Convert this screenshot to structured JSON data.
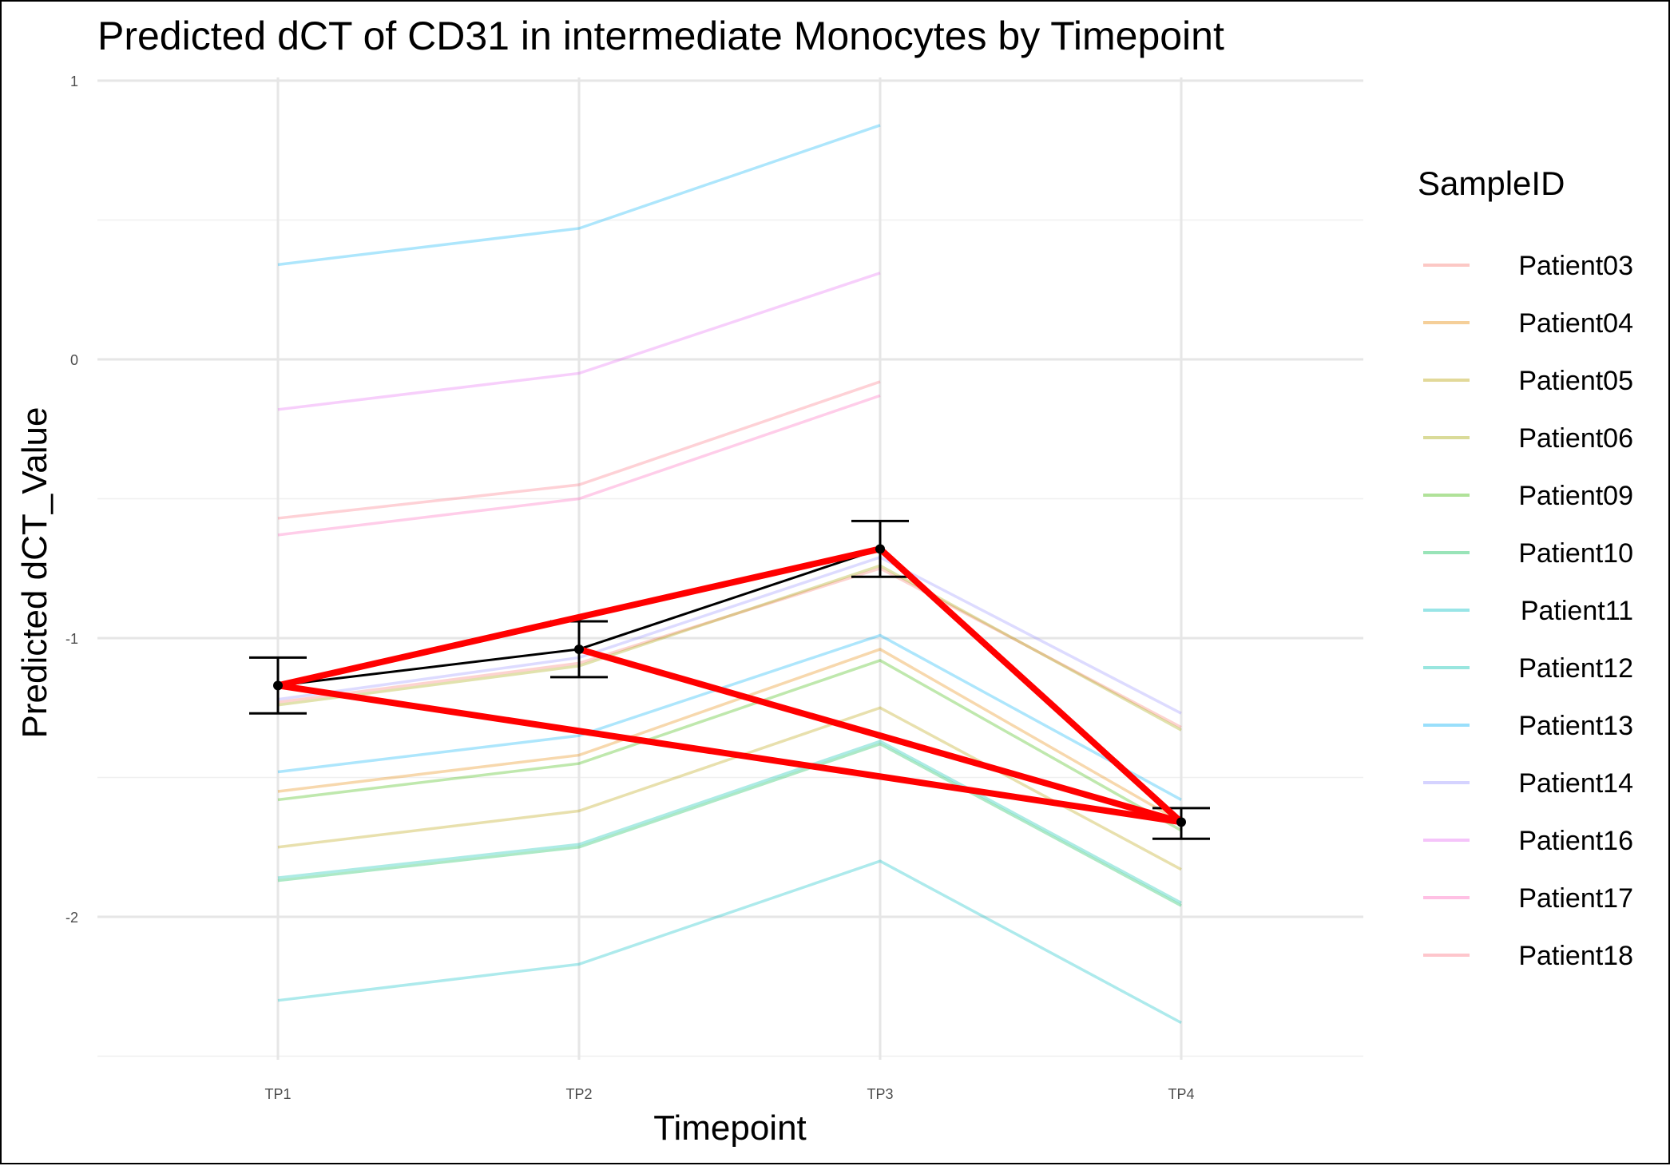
{
  "chart_data": {
    "type": "line",
    "title": "Predicted dCT of  CD31 in  intermediate  Monocytes by Timepoint",
    "xlabel": "Timepoint",
    "ylabel": "Predicted dCT_Value",
    "categories": [
      "TP1",
      "TP2",
      "TP3",
      "TP4"
    ],
    "ylim": [
      -2.5,
      1.0
    ],
    "yticks": [
      1,
      0,
      -1,
      -2
    ],
    "ytick_labels": [
      "1",
      "0",
      "-1",
      "-2"
    ],
    "grid": true,
    "legend": {
      "title": "SampleID",
      "position": "right"
    },
    "series": [
      {
        "name": "Patient03",
        "color": "#F8766D",
        "values": [
          -1.23,
          -1.09,
          -0.75,
          -1.32
        ]
      },
      {
        "name": "Patient04",
        "color": "#E58700",
        "values": [
          -1.55,
          -1.42,
          -1.04,
          -1.66
        ]
      },
      {
        "name": "Patient05",
        "color": "#B79F00",
        "values": [
          -1.75,
          -1.62,
          -1.25,
          -1.83
        ]
      },
      {
        "name": "Patient06",
        "color": "#A3A500",
        "values": [
          -1.24,
          -1.1,
          -0.74,
          -1.33
        ]
      },
      {
        "name": "Patient09",
        "color": "#39B600",
        "values": [
          -1.58,
          -1.45,
          -1.08,
          -1.69
        ]
      },
      {
        "name": "Patient10",
        "color": "#00BB4E",
        "values": [
          -1.87,
          -1.75,
          -1.38,
          -1.96
        ]
      },
      {
        "name": "Patient11",
        "color": "#00BFC4",
        "values": [
          -2.3,
          -2.17,
          -1.8,
          -2.38
        ]
      },
      {
        "name": "Patient12",
        "color": "#00C0AF",
        "values": [
          -1.86,
          -1.74,
          -1.37,
          -1.95
        ]
      },
      {
        "name": "Patient13",
        "color": "#00B0F6",
        "values": [
          0.34,
          0.47,
          0.84,
          null
        ]
      },
      {
        "name": "Patient14",
        "color": "#9590FF",
        "values": [
          -1.22,
          -1.07,
          -0.71,
          -1.27
        ]
      },
      {
        "name": "Patient16",
        "color": "#E76BF3",
        "values": [
          -0.18,
          -0.05,
          0.31,
          null
        ]
      },
      {
        "name": "Patient17",
        "color": "#FF62BC",
        "values": [
          -0.63,
          -0.5,
          -0.13,
          null
        ]
      },
      {
        "name": "Patient18",
        "color": "#FC717F",
        "values": [
          -0.57,
          -0.45,
          -0.08,
          null
        ]
      }
    ],
    "unlabeled_series": [
      {
        "color": "#00B0F6",
        "values": [
          -1.48,
          -1.35,
          -0.99,
          -1.58
        ]
      }
    ],
    "mean": {
      "color": "#000000",
      "values": [
        -1.17,
        -1.04,
        -0.68,
        -1.66
      ],
      "error_low": [
        -1.27,
        -1.14,
        -0.78,
        -1.72
      ],
      "error_high": [
        -1.07,
        -0.94,
        -0.58,
        -1.61
      ]
    },
    "highlight": {
      "color": "#FF0000",
      "segments": [
        {
          "from": [
            "TP1",
            -1.17
          ],
          "to": [
            "TP3",
            -0.68
          ]
        },
        {
          "from": [
            "TP3",
            -0.68
          ],
          "to": [
            "TP4",
            -1.66
          ]
        },
        {
          "from": [
            "TP1",
            -1.17
          ],
          "to": [
            "TP4",
            -1.66
          ]
        },
        {
          "from": [
            "TP2",
            -1.04
          ],
          "to": [
            "TP4",
            -1.66
          ]
        }
      ]
    }
  }
}
